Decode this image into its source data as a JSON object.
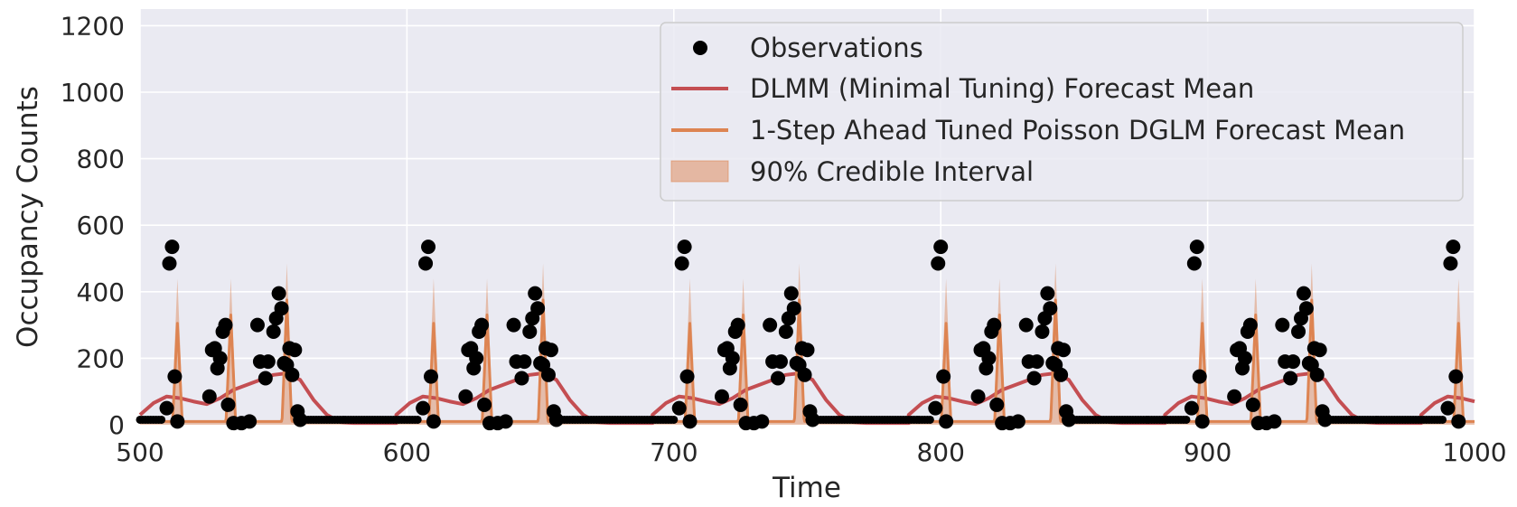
{
  "chart_data": {
    "type": "line",
    "title": "",
    "xlabel": "Time",
    "ylabel": "Occupancy Counts",
    "xlim": [
      500,
      1000
    ],
    "ylim": [
      0,
      1250
    ],
    "xticks": [
      "500",
      "600",
      "700",
      "800",
      "900",
      "1000"
    ],
    "yticks": [
      "0",
      "200",
      "400",
      "600",
      "800",
      "1000",
      "1200"
    ],
    "grid": true,
    "legend_position": "top-right",
    "colors": {
      "background": "#eaeaf2",
      "grid": "#ffffff",
      "observations": "#000000",
      "dlmm": "#c44e52",
      "dglm": "#dd8452",
      "interval": "#dd8452"
    },
    "legend": [
      {
        "label": "Observations",
        "kind": "marker"
      },
      {
        "label": "DLMM (Minimal Tuning) Forecast Mean",
        "kind": "line",
        "series": "dlmm"
      },
      {
        "label": "1-Step Ahead Tuned Poisson DGLM Forecast Mean",
        "kind": "line",
        "series": "dglm"
      },
      {
        "label": "90% Credible Interval",
        "kind": "patch",
        "series": "interval"
      }
    ],
    "period": 96,
    "observations": {
      "cycle_points": [
        {
          "t": 510,
          "y": 50
        },
        {
          "t": 511,
          "y": 485
        },
        {
          "t": 512,
          "y": 535
        },
        {
          "t": 513,
          "y": 145
        },
        {
          "t": 514,
          "y": 10
        },
        {
          "t": 526,
          "y": 85
        },
        {
          "t": 527,
          "y": 225
        },
        {
          "t": 528,
          "y": 230
        },
        {
          "t": 529,
          "y": 170
        },
        {
          "t": 530,
          "y": 200
        },
        {
          "t": 531,
          "y": 280
        },
        {
          "t": 532,
          "y": 300
        },
        {
          "t": 533,
          "y": 60
        },
        {
          "t": 535,
          "y": 5
        },
        {
          "t": 538,
          "y": 5
        },
        {
          "t": 541,
          "y": 10
        },
        {
          "t": 544,
          "y": 300
        },
        {
          "t": 545,
          "y": 190
        },
        {
          "t": 547,
          "y": 140
        },
        {
          "t": 548,
          "y": 190
        },
        {
          "t": 550,
          "y": 280
        },
        {
          "t": 551,
          "y": 320
        },
        {
          "t": 552,
          "y": 395
        },
        {
          "t": 553,
          "y": 350
        },
        {
          "t": 554,
          "y": 185
        },
        {
          "t": 555,
          "y": 180
        },
        {
          "t": 556,
          "y": 230
        },
        {
          "t": 557,
          "y": 150
        },
        {
          "t": 558,
          "y": 225
        },
        {
          "t": 559,
          "y": 40
        },
        {
          "t": 560,
          "y": 15
        }
      ],
      "cycle_starts": [
        500,
        596,
        692,
        788,
        884,
        980
      ],
      "night_level": 15
    },
    "series": [
      {
        "id": "dlmm",
        "name": "DLMM (Minimal Tuning) Forecast Mean",
        "cycle_points": [
          [
            500,
            30
          ],
          [
            505,
            65
          ],
          [
            510,
            85
          ],
          [
            515,
            80
          ],
          [
            520,
            70
          ],
          [
            525,
            62
          ],
          [
            530,
            80
          ],
          [
            535,
            105
          ],
          [
            540,
            120
          ],
          [
            545,
            135
          ],
          [
            550,
            150
          ],
          [
            555,
            155
          ],
          [
            560,
            135
          ],
          [
            565,
            75
          ],
          [
            570,
            30
          ],
          [
            575,
            8
          ],
          [
            580,
            5
          ],
          [
            596,
            5
          ]
        ]
      },
      {
        "id": "dglm",
        "name": "1-Step Ahead Tuned Poisson DGLM Forecast Mean",
        "spikes": [
          {
            "offset": 14,
            "peak": 305,
            "upper": 440
          },
          {
            "offset": 34,
            "peak": 330,
            "upper": 440
          },
          {
            "offset": 55,
            "peak": 375,
            "upper": 485
          }
        ],
        "baseline": 10
      }
    ]
  }
}
